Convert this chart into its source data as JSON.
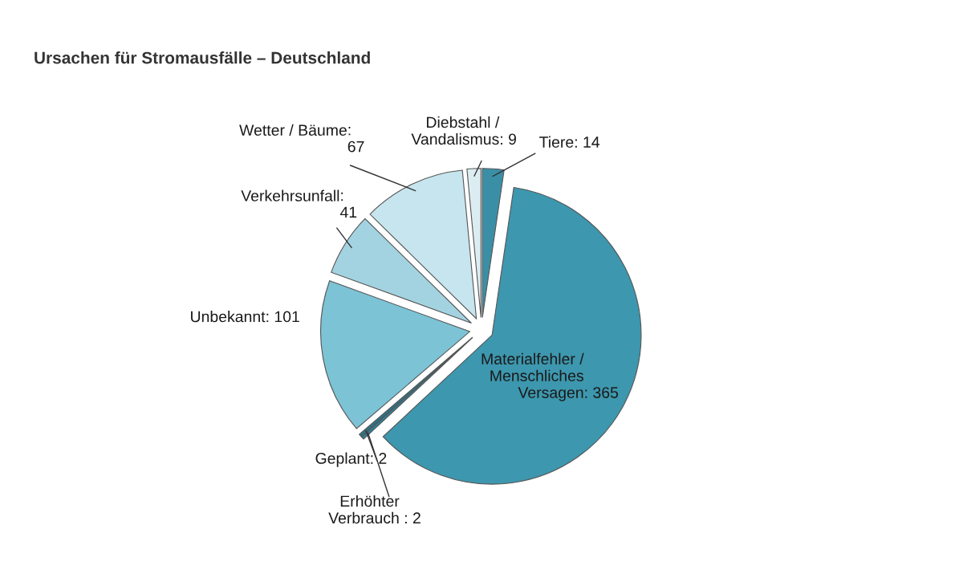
{
  "chart_data": {
    "type": "pie",
    "title": "Ursachen für Stromausfälle – Deutschland",
    "categories": [
      "Tiere",
      "Materialfehler /\nMenschliches\nVersagen",
      "Erhöhter\nVerbrauch",
      "Geplant",
      "Unbekannt",
      "Verkehrsunfall",
      "Wetter / Bäume",
      "Diebstahl /\nVandalismus"
    ],
    "values": [
      14,
      365,
      2,
      2,
      101,
      41,
      67,
      9
    ],
    "colors": [
      "#3a8fa6",
      "#3d97ae",
      "#2e7f95",
      "#2a7589",
      "#7cc3d6",
      "#a3d3e1",
      "#c6e5ee",
      "#dcedf2"
    ],
    "value_labels": [
      ": 14",
      ": 365",
      " : 2",
      ": 2",
      ": 101",
      ":\n41",
      ":\n67",
      ": 9"
    ]
  }
}
